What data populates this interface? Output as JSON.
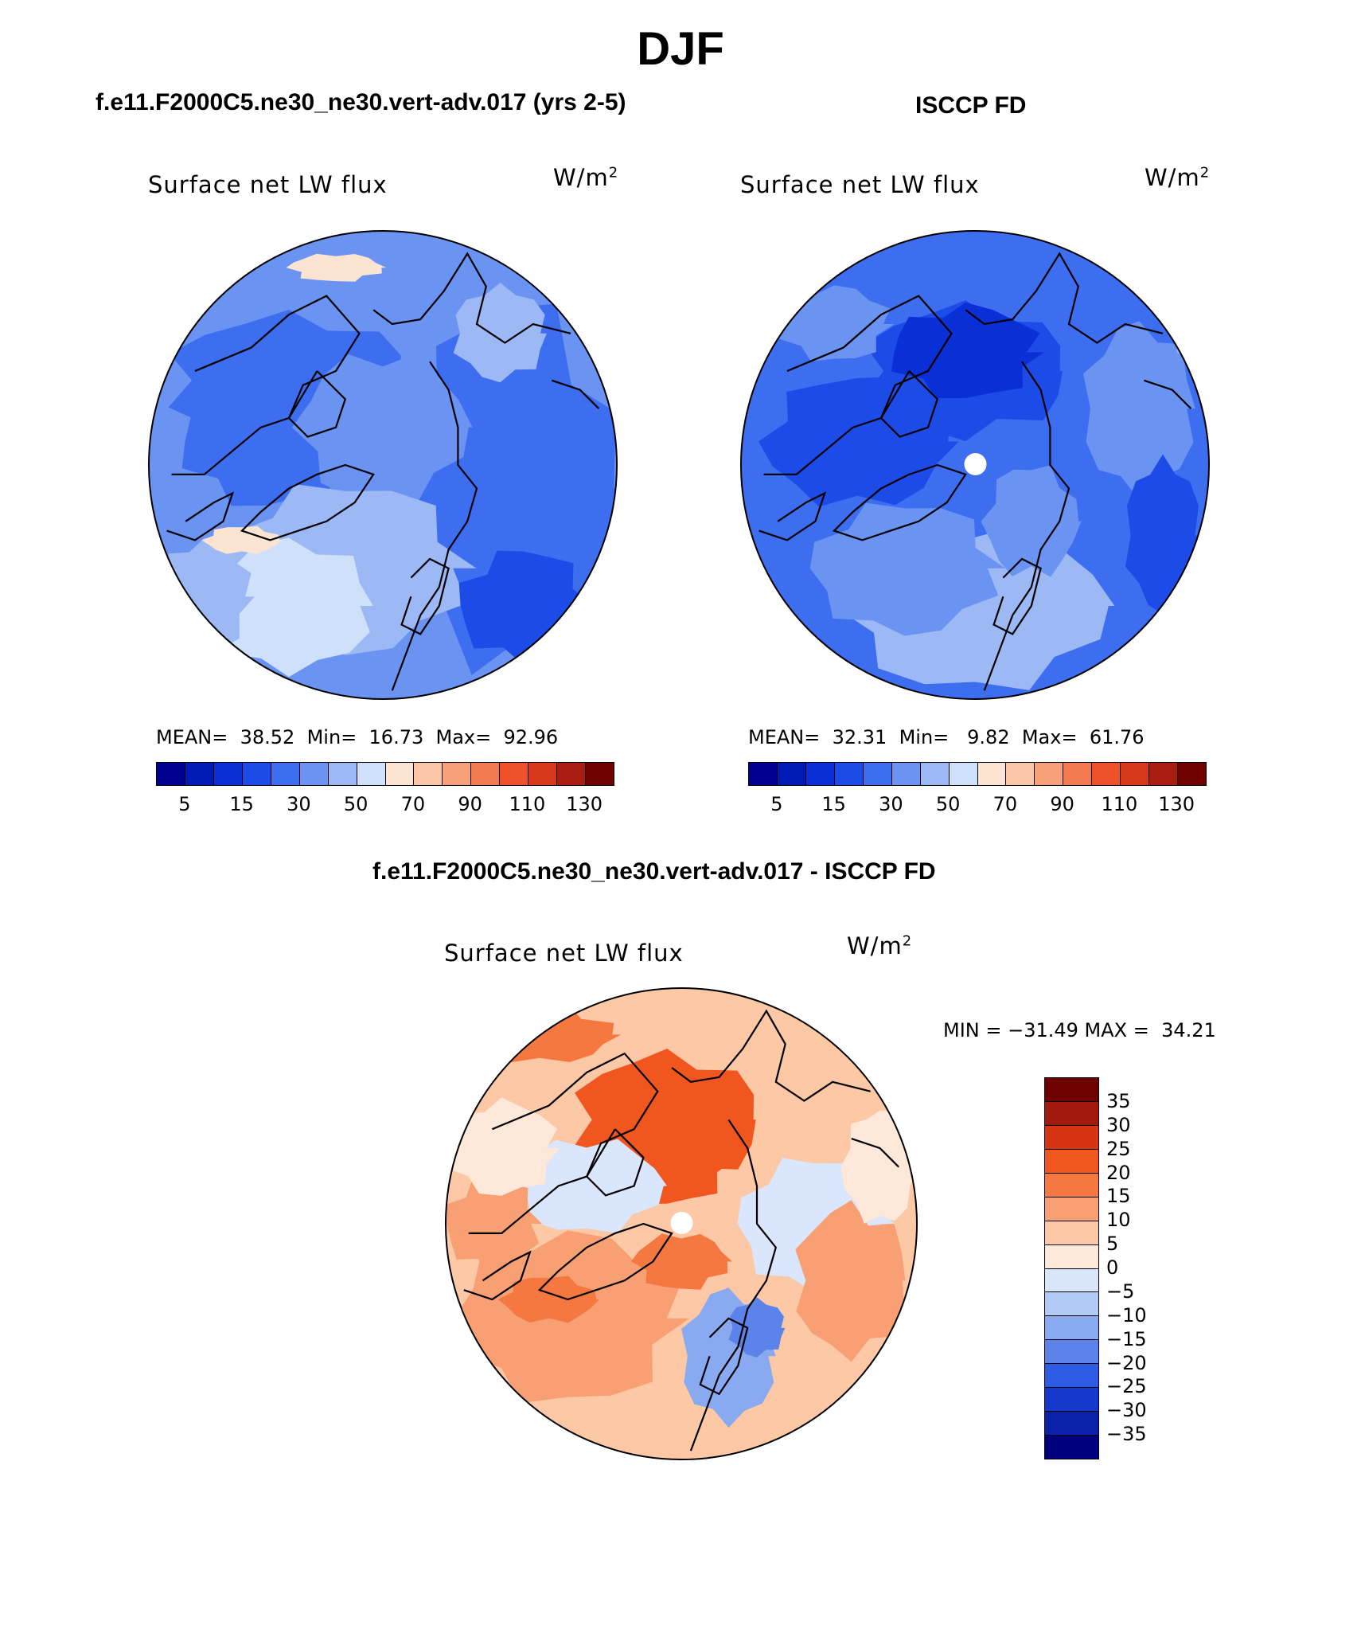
{
  "title": "DJF",
  "panels": [
    {
      "subtitle": "f.e11.F2000C5.ne30_ne30.vert-adv.017 (yrs 2-5)",
      "plot_label": "Surface net LW flux",
      "units": "W/m",
      "units_exp": "2",
      "stats": "MEAN=  38.52  Min=  16.73  Max=  92.96",
      "colorbar_ticks": [
        "5",
        "15",
        "30",
        "50",
        "70",
        "90",
        "110",
        "130"
      ]
    },
    {
      "subtitle": "ISCCP FD",
      "plot_label": "Surface net LW flux",
      "units": "W/m",
      "units_exp": "2",
      "stats": "MEAN=  32.31  Min=   9.82  Max=  61.76",
      "colorbar_ticks": [
        "5",
        "15",
        "30",
        "50",
        "70",
        "90",
        "110",
        "130"
      ]
    }
  ],
  "difference": {
    "subtitle": "f.e11.F2000C5.ne30_ne30.vert-adv.017 - ISCCP FD",
    "plot_label": "Surface net LW flux",
    "units": "W/m",
    "units_exp": "2",
    "minmax": "MIN = −31.49 MAX =  34.21",
    "colorbar_ticks": [
      "35",
      "30",
      "25",
      "20",
      "15",
      "10",
      "5",
      "0",
      "−5",
      "−10",
      "−15",
      "−20",
      "−25",
      "−30",
      "−35"
    ]
  },
  "colors": {
    "seq": [
      "#00008e",
      "#001bb4",
      "#0a2fd6",
      "#1c4be8",
      "#3d6ef0",
      "#6a93f2",
      "#9cb9f5",
      "#cfe0fa",
      "#fce4d2",
      "#fbc5a6",
      "#f8a07a",
      "#f47a4f",
      "#ed522b",
      "#d8381a",
      "#a81d10",
      "#700000"
    ],
    "div": [
      "#6e0000",
      "#a31a0c",
      "#d63413",
      "#f1561f",
      "#f4783f",
      "#f8a074",
      "#fcc8a6",
      "#fde8da",
      "#d9e6fb",
      "#b2cbf6",
      "#89a9f0",
      "#5b83ea",
      "#2e5be4",
      "#1439cc",
      "#0a21a8",
      "#00007f"
    ]
  },
  "map_fields": {
    "model": "cool-medium",
    "isccp": "cool-deep",
    "diff": "warm-anomaly"
  }
}
